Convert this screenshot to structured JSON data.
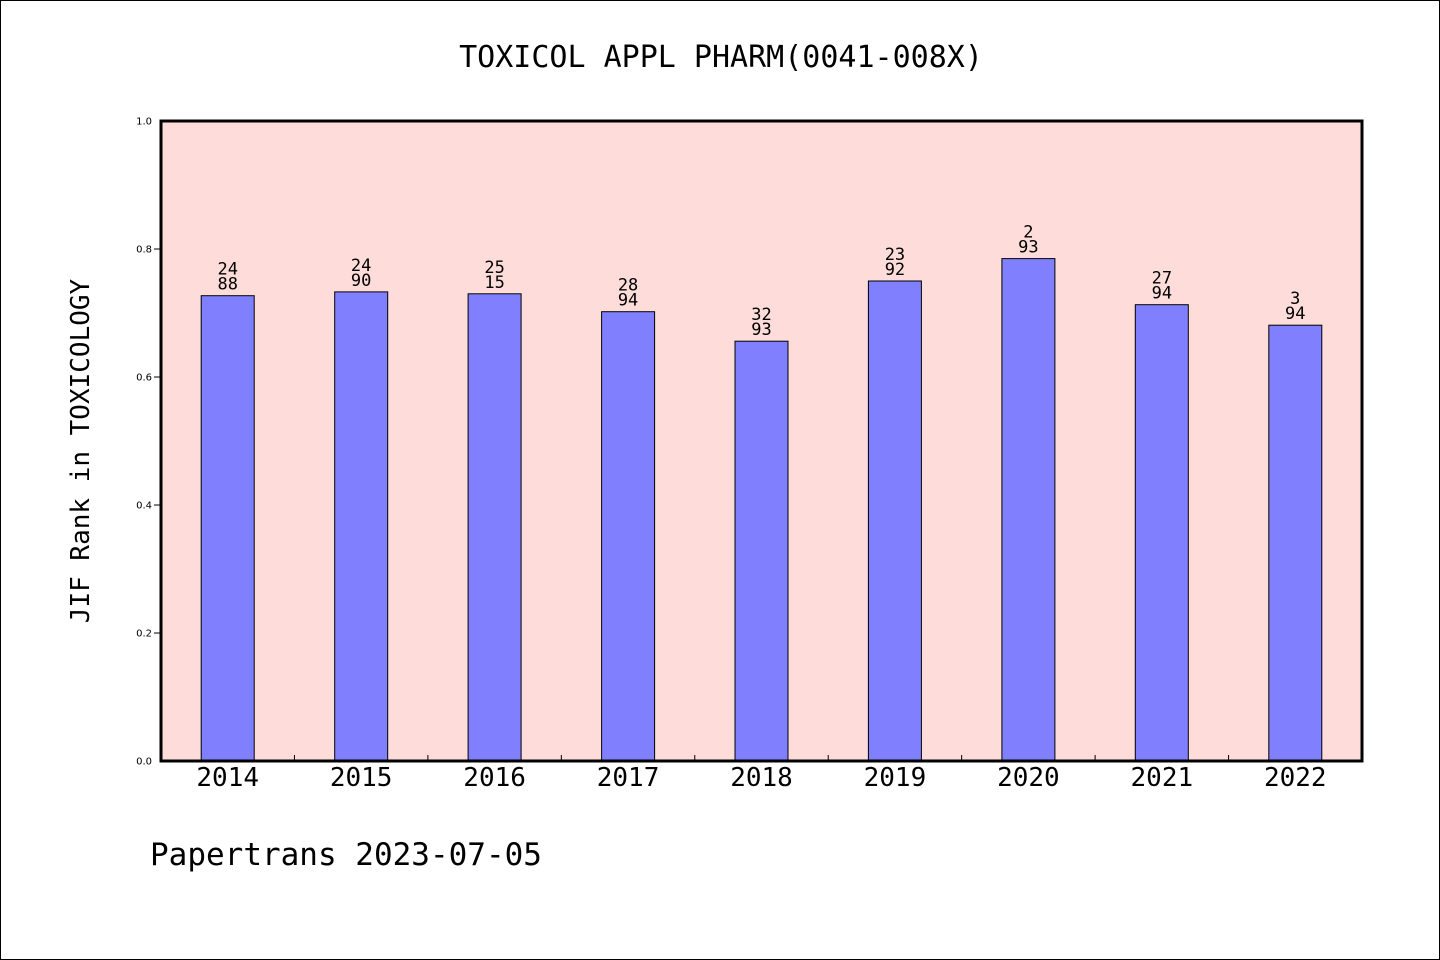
{
  "chart_data": {
    "type": "bar",
    "title": "TOXICOL APPL PHARM(0041-008X)",
    "ylabel": "JIF Rank in TOXICOLOGY",
    "xlabel": "",
    "ylim": [
      0,
      1.0
    ],
    "yticks": [
      "0.0",
      "0.2",
      "0.4",
      "0.6",
      "0.8",
      "1.0"
    ],
    "categories": [
      "2014",
      "2015",
      "2016",
      "2017",
      "2018",
      "2019",
      "2020",
      "2021",
      "2022"
    ],
    "values": [
      0.727,
      0.733,
      0.73,
      0.702,
      0.656,
      0.75,
      0.785,
      0.713,
      0.681
    ],
    "bar_labels": [
      [
        "24",
        "88"
      ],
      [
        "24",
        "90"
      ],
      [
        "25",
        "15"
      ],
      [
        "28",
        "94"
      ],
      [
        "32",
        "93"
      ],
      [
        "23",
        "92"
      ],
      [
        "2",
        "93"
      ],
      [
        "27",
        "94"
      ],
      [
        "3",
        "94"
      ]
    ],
    "grid": false,
    "colors": {
      "bar": "#8080ff",
      "plot_background": "#fddcd9",
      "axis": "#000000"
    }
  },
  "footer": "Papertrans 2023-07-05"
}
